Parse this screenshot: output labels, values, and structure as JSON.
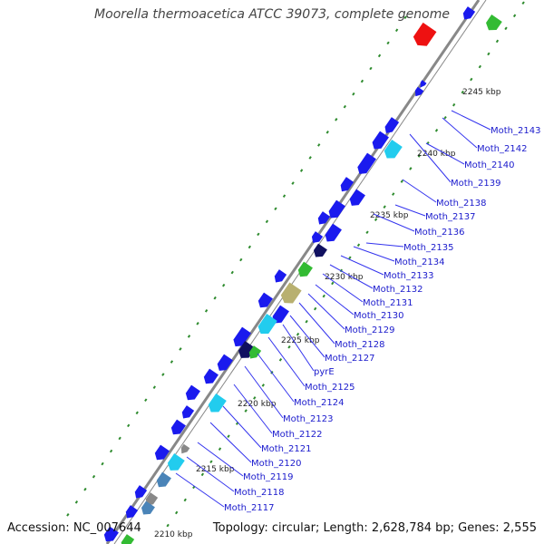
{
  "title": "Moorella thermoacetica ATCC 39073, complete genome",
  "footer": {
    "accession": "Accession: NC_007644",
    "summary": "Topology: circular; Length: 2,628,784 bp; Genes: 2,555"
  },
  "scale_labels": [
    "2245 kbp",
    "2240 kbp",
    "2235 kbp",
    "2230 kbp",
    "2225 kbp",
    "2220 kbp",
    "2215 kbp",
    "2210 kbp"
  ],
  "gene_labels": [
    "Moth_2143",
    "Moth_2142",
    "Moth_2140",
    "Moth_2139",
    "Moth_2138",
    "Moth_2137",
    "Moth_2136",
    "Moth_2135",
    "Moth_2134",
    "Moth_2133",
    "Moth_2132",
    "Moth_2131",
    "Moth_2130",
    "Moth_2129",
    "Moth_2128",
    "Moth_2127",
    "pyrE",
    "Moth_2125",
    "Moth_2124",
    "Moth_2123",
    "Moth_2122",
    "Moth_2121",
    "Moth_2120",
    "Moth_2119",
    "Moth_2118",
    "Moth_2117"
  ],
  "colors": {
    "gene": "#1a1aee",
    "label": "#1a1acc",
    "leader": "#3333ee",
    "backbone": "#888888",
    "gc_ticks": "#2e8b2e",
    "rna": "#ee1111",
    "green_feature": "#33bb33",
    "cyan_feature": "#22ccee",
    "teal_feature": "#33aaaa",
    "steel_feature": "#4a84b8",
    "khaki_feature": "#b8b070",
    "gray_feature": "#888888",
    "navy_feature": "#101060"
  }
}
